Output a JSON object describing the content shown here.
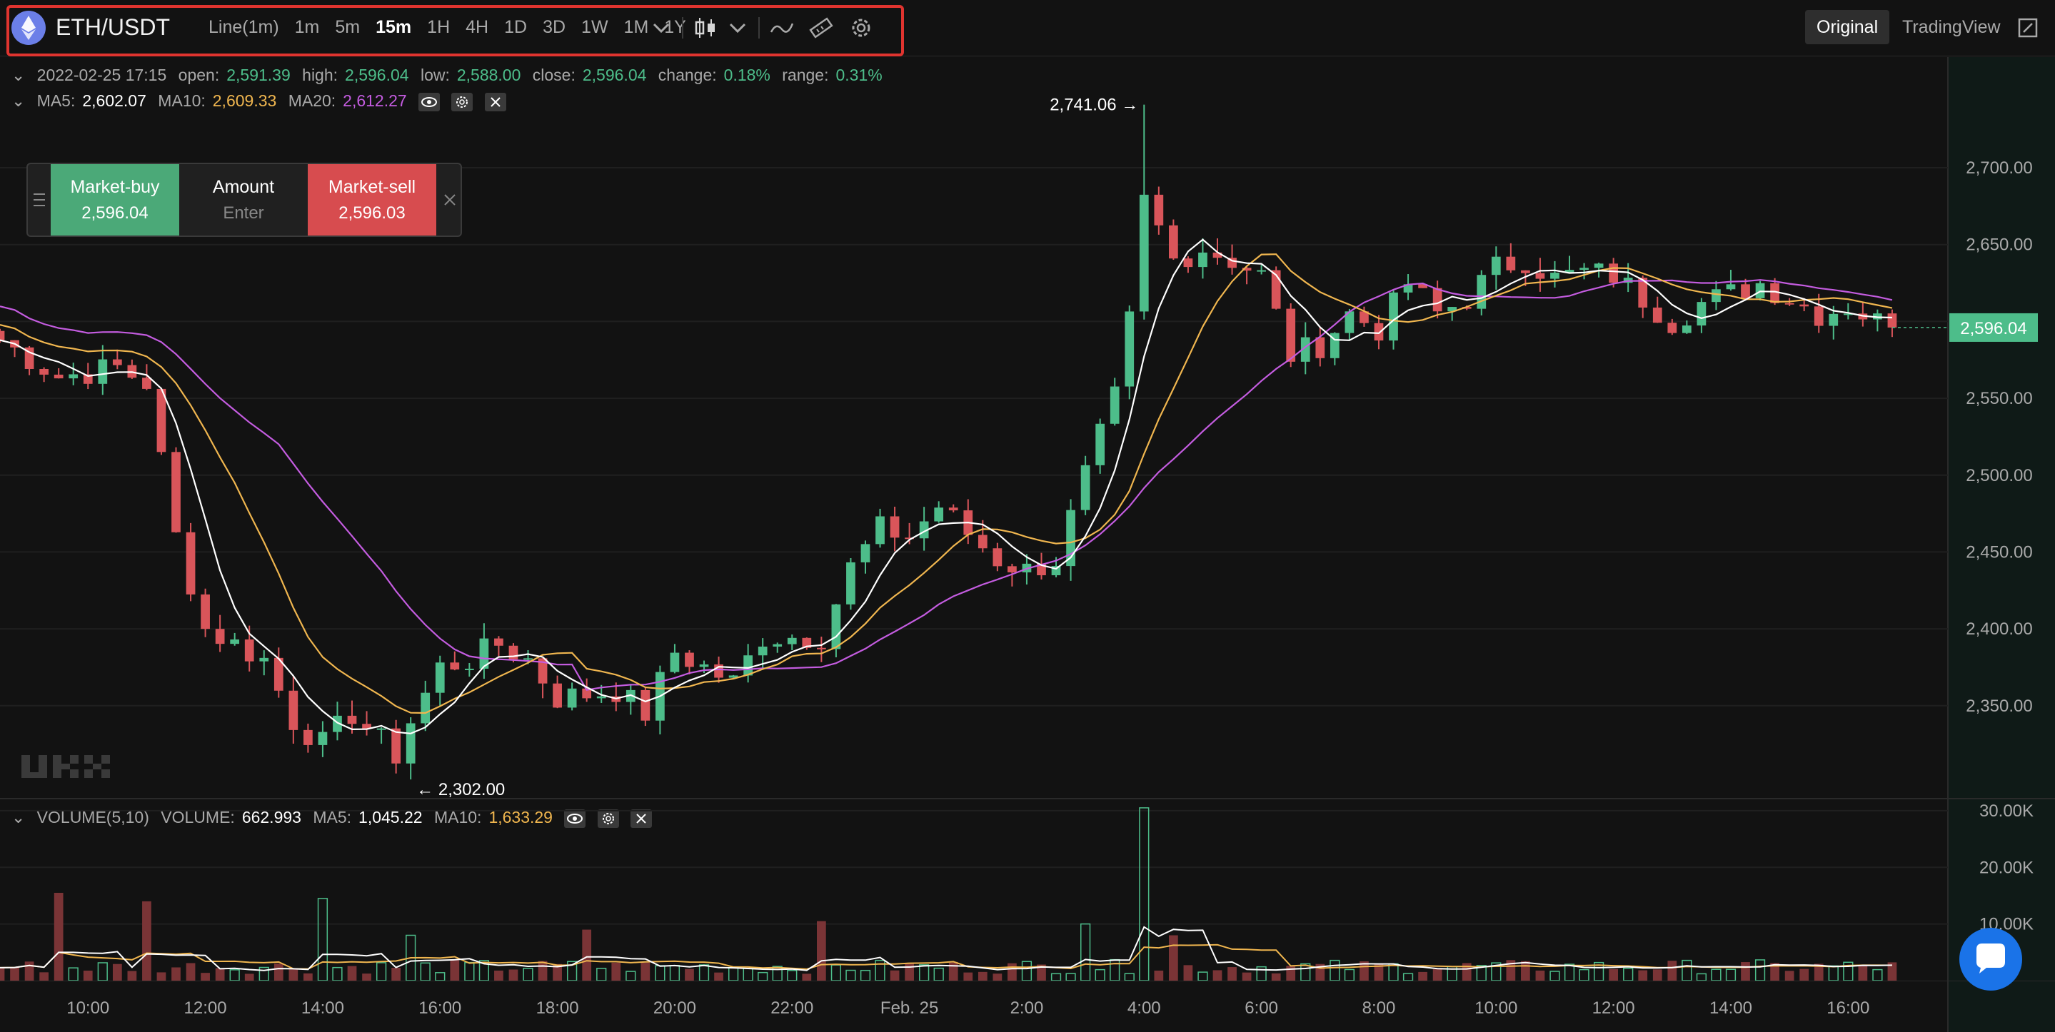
{
  "header": {
    "pair": "ETH/USDT",
    "intervals": [
      "Line(1m)",
      "1m",
      "5m",
      "15m",
      "1H",
      "4H",
      "1D",
      "3D",
      "1W",
      "1M",
      "1Y"
    ],
    "active_interval": "15m",
    "view_original": "Original",
    "view_tradingview": "TradingView"
  },
  "ohlc": {
    "date": "2022-02-25 17:15",
    "open_label": "open:",
    "open": "2,591.39",
    "high_label": "high:",
    "high": "2,596.04",
    "low_label": "low:",
    "low": "2,588.00",
    "close_label": "close:",
    "close": "2,596.04",
    "change_label": "change:",
    "change": "0.18%",
    "range_label": "range:",
    "range": "0.31%"
  },
  "ma": {
    "ma5_label": "MA5:",
    "ma5": "2,602.07",
    "ma10_label": "MA10:",
    "ma10": "2,609.33",
    "ma20_label": "MA20:",
    "ma20": "2,612.27"
  },
  "order": {
    "buy_label": "Market-buy",
    "buy_price": "2,596.04",
    "amount_label": "Amount",
    "amount_placeholder": "Enter",
    "sell_label": "Market-sell",
    "sell_price": "2,596.03"
  },
  "volume": {
    "title": "VOLUME(5,10)",
    "volume_label": "VOLUME:",
    "volume": "662.993",
    "ma5_label": "MA5:",
    "ma5": "1,045.22",
    "ma10_label": "MA10:",
    "ma10": "1,633.29"
  },
  "colors": {
    "up": "#4dbd8a",
    "down": "#d9555a",
    "ma5": "#ffffff",
    "ma10": "#f0b64f",
    "ma20": "#c45ce0",
    "accent_box": "#e0342f"
  },
  "chart_data": {
    "type": "candlestick",
    "title": "ETH/USDT 15m",
    "price_axis": {
      "ylim": [
        2290,
        2772
      ],
      "ticks": [
        2350,
        2400,
        2450,
        2500,
        2550,
        2600,
        2650,
        2700
      ],
      "tick_labels": [
        "2,350.00",
        "2,400.00",
        "2,450.00",
        "2,500.00",
        "2,550.00",
        "2,600.00",
        "2,650.00",
        "2,700.00"
      ]
    },
    "volume_axis": {
      "ylim": [
        0,
        32000
      ],
      "ticks": [
        10000,
        20000,
        30000
      ],
      "tick_labels": [
        "10.00K",
        "20.00K",
        "30.00K"
      ]
    },
    "x_labels": [
      "10:00",
      "12:00",
      "14:00",
      "16:00",
      "18:00",
      "20:00",
      "22:00",
      "Feb. 25",
      "2:00",
      "4:00",
      "6:00",
      "8:00",
      "10:00",
      "12:00",
      "14:00",
      "16:00"
    ],
    "x_label_positions_hours": [
      1.5,
      3.5,
      5.5,
      7.5,
      9.5,
      11.5,
      13.5,
      15.5,
      17.5,
      19.5,
      21.5,
      23.5,
      25.5,
      27.5,
      29.5,
      31.5
    ],
    "annotations": {
      "high": "2,741.06",
      "low": "2,302.00",
      "last_price": "2,596.04"
    },
    "annotation_values": {
      "high": 2741.06,
      "low": 2302.0,
      "last_price": 2596.04
    },
    "anchors": [
      {
        "t": 0.0,
        "p": 2588
      },
      {
        "t": 1.0,
        "p": 2564
      },
      {
        "t": 2.0,
        "p": 2570
      },
      {
        "t": 2.5,
        "p": 2560
      },
      {
        "t": 3.0,
        "p": 2460
      },
      {
        "t": 3.5,
        "p": 2400
      },
      {
        "t": 4.5,
        "p": 2380
      },
      {
        "t": 5.0,
        "p": 2340
      },
      {
        "t": 5.5,
        "p": 2325
      },
      {
        "t": 6.0,
        "p": 2345
      },
      {
        "t": 6.75,
        "p": 2318
      },
      {
        "t": 7.0,
        "p": 2340
      },
      {
        "t": 7.5,
        "p": 2375
      },
      {
        "t": 8.0,
        "p": 2380
      },
      {
        "t": 8.5,
        "p": 2390
      },
      {
        "t": 9.0,
        "p": 2380
      },
      {
        "t": 9.5,
        "p": 2355
      },
      {
        "t": 10.5,
        "p": 2360
      },
      {
        "t": 11.0,
        "p": 2345
      },
      {
        "t": 11.5,
        "p": 2385
      },
      {
        "t": 12.5,
        "p": 2365
      },
      {
        "t": 13.0,
        "p": 2395
      },
      {
        "t": 14.0,
        "p": 2395
      },
      {
        "t": 14.5,
        "p": 2440
      },
      {
        "t": 15.0,
        "p": 2465
      },
      {
        "t": 15.5,
        "p": 2460
      },
      {
        "t": 16.0,
        "p": 2480
      },
      {
        "t": 16.5,
        "p": 2462
      },
      {
        "t": 17.0,
        "p": 2445
      },
      {
        "t": 17.5,
        "p": 2438
      },
      {
        "t": 18.0,
        "p": 2445
      },
      {
        "t": 18.5,
        "p": 2500
      },
      {
        "t": 19.0,
        "p": 2550
      },
      {
        "t": 19.25,
        "p": 2600
      },
      {
        "t": 19.5,
        "p": 2678
      },
      {
        "t": 19.75,
        "p": 2660
      },
      {
        "t": 20.0,
        "p": 2640
      },
      {
        "t": 20.5,
        "p": 2648
      },
      {
        "t": 21.0,
        "p": 2640
      },
      {
        "t": 21.5,
        "p": 2630
      },
      {
        "t": 22.0,
        "p": 2578
      },
      {
        "t": 22.5,
        "p": 2585
      },
      {
        "t": 23.0,
        "p": 2605
      },
      {
        "t": 23.5,
        "p": 2595
      },
      {
        "t": 24.0,
        "p": 2625
      },
      {
        "t": 24.5,
        "p": 2605
      },
      {
        "t": 25.0,
        "p": 2615
      },
      {
        "t": 25.5,
        "p": 2635
      },
      {
        "t": 26.0,
        "p": 2640
      },
      {
        "t": 26.5,
        "p": 2628
      },
      {
        "t": 27.0,
        "p": 2632
      },
      {
        "t": 27.5,
        "p": 2630
      },
      {
        "t": 28.0,
        "p": 2615
      },
      {
        "t": 28.5,
        "p": 2600
      },
      {
        "t": 29.0,
        "p": 2612
      },
      {
        "t": 29.5,
        "p": 2618
      },
      {
        "t": 30.0,
        "p": 2625
      },
      {
        "t": 30.5,
        "p": 2615
      },
      {
        "t": 31.0,
        "p": 2605
      },
      {
        "t": 31.5,
        "p": 2610
      },
      {
        "t": 32.0,
        "p": 2600
      },
      {
        "t": 32.25,
        "p": 2596
      }
    ],
    "volume_spikes": [
      {
        "t": 1.0,
        "v": 15500
      },
      {
        "t": 2.5,
        "v": 14000
      },
      {
        "t": 5.5,
        "v": 14500
      },
      {
        "t": 7.0,
        "v": 8000
      },
      {
        "t": 10.0,
        "v": 9000
      },
      {
        "t": 14.0,
        "v": 10500
      },
      {
        "t": 18.5,
        "v": 10000
      },
      {
        "t": 19.5,
        "v": 30500
      },
      {
        "t": 20.0,
        "v": 8000
      }
    ],
    "ma_periods": [
      5,
      10,
      20
    ],
    "candle_count": 130
  }
}
